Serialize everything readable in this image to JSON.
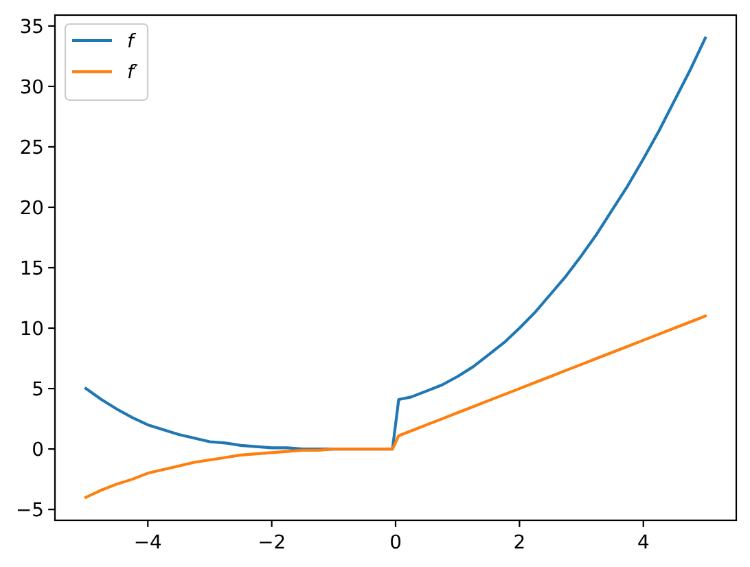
{
  "chart_data": {
    "type": "line",
    "x": [
      -5,
      -4.75,
      -4.5,
      -4.25,
      -4,
      -3.75,
      -3.5,
      -3.25,
      -3,
      -2.75,
      -2.5,
      -2.25,
      -2,
      -1.75,
      -1.5,
      -1.25,
      -1,
      -0.75,
      -0.5,
      -0.25,
      -0.05,
      0.05,
      0.25,
      0.5,
      0.75,
      1,
      1.25,
      1.5,
      1.75,
      2,
      2.25,
      2.5,
      2.75,
      3,
      3.25,
      3.5,
      3.75,
      4,
      4.25,
      4.5,
      4.75,
      5
    ],
    "series": [
      {
        "name": "f",
        "color": "#1f77b4",
        "values": [
          5,
          4.1,
          3.3,
          2.6,
          2.0,
          1.6,
          1.2,
          0.9,
          0.6,
          0.5,
          0.3,
          0.2,
          0.1,
          0.1,
          0,
          0,
          0,
          0,
          0,
          0,
          0,
          4.1,
          4.3,
          4.8,
          5.3,
          6,
          6.8,
          7.8,
          8.8,
          10,
          11.3,
          12.8,
          14.3,
          16,
          17.8,
          19.8,
          21.8,
          24,
          26.3,
          28.8,
          31.3,
          34
        ]
      },
      {
        "name": "f′",
        "color": "#ff7f0e",
        "values": [
          -4,
          -3.4,
          -2.9,
          -2.5,
          -2.0,
          -1.7,
          -1.4,
          -1.1,
          -0.9,
          -0.7,
          -0.5,
          -0.4,
          -0.3,
          -0.2,
          -0.1,
          -0.1,
          0,
          0,
          0,
          0,
          0,
          1.1,
          1.5,
          2,
          2.5,
          3,
          3.5,
          4,
          4.5,
          5,
          5.5,
          6,
          6.5,
          7,
          7.5,
          8,
          8.5,
          9,
          9.5,
          10,
          10.5,
          11
        ]
      }
    ],
    "xlim": [
      -5.5,
      5.5
    ],
    "ylim": [
      -5.9,
      35.9
    ],
    "xticks": [
      -4,
      -2,
      0,
      2,
      4
    ],
    "yticks": [
      -5,
      0,
      5,
      10,
      15,
      20,
      25,
      30,
      35
    ],
    "legend": "top left",
    "line_style": "solid"
  }
}
